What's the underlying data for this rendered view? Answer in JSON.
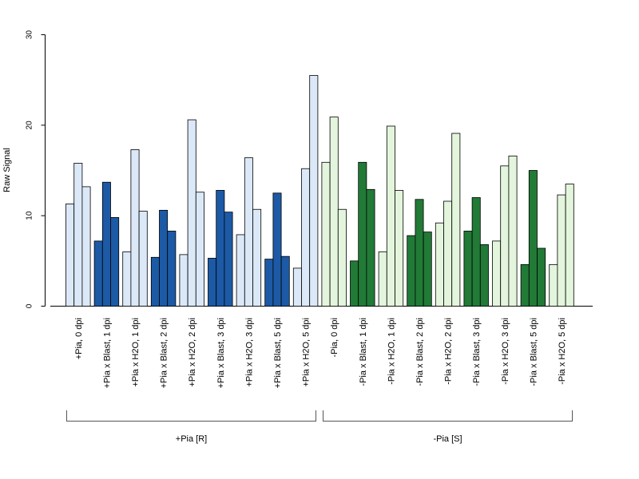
{
  "chart_data": {
    "type": "bar",
    "ylabel": "Raw Signal",
    "ylim": [
      0,
      30
    ],
    "yticks": [
      0,
      10,
      20,
      30
    ],
    "grid": false,
    "categories": [
      "+Pia, 0 dpi",
      "+Pia x Blast, 1 dpi",
      "+Pia x H2O, 1 dpi",
      "+Pia x Blast, 2 dpi",
      "+Pia x H2O, 2 dpi",
      "+Pia x Blast, 3 dpi",
      "+Pia x H2O, 3 dpi",
      "+Pia x Blast, 5 dpi",
      "+Pia x H2O, 5 dpi",
      "-Pia, 0 dpi",
      "-Pia x Blast, 1 dpi",
      "-Pia x H2O, 1 dpi",
      "-Pia x Blast, 2 dpi",
      "-Pia x H2O, 2 dpi",
      "-Pia x Blast, 3 dpi",
      "-Pia x H2O, 3 dpi",
      "-Pia x Blast, 5 dpi",
      "-Pia x H2O, 5 dpi"
    ],
    "replicates": [
      [
        11.3,
        15.8,
        13.2
      ],
      [
        7.2,
        13.7,
        9.8
      ],
      [
        6.0,
        17.3,
        10.5
      ],
      [
        5.4,
        10.6,
        8.3
      ],
      [
        5.7,
        20.6,
        12.6
      ],
      [
        5.3,
        12.8,
        10.4
      ],
      [
        7.9,
        16.4,
        10.7
      ],
      [
        5.2,
        12.5,
        5.5
      ],
      [
        4.2,
        15.2,
        25.5
      ],
      [
        15.9,
        20.9,
        10.7
      ],
      [
        5.0,
        15.9,
        12.9
      ],
      [
        6.0,
        19.9,
        12.8
      ],
      [
        7.8,
        11.8,
        8.2
      ],
      [
        9.2,
        11.6,
        19.1
      ],
      [
        8.3,
        12.0,
        6.8
      ],
      [
        7.2,
        15.5,
        16.6
      ],
      [
        4.6,
        15.0,
        6.4
      ],
      [
        4.6,
        12.3,
        13.5
      ]
    ],
    "groups": [
      {
        "label": "+Pia [R]",
        "start": 0,
        "end": 8
      },
      {
        "label": "-Pia [S]",
        "start": 9,
        "end": 17
      }
    ],
    "colors": {
      "pia_pos_light": "#dbe8f7",
      "pia_pos_dark": "#1c5aa6",
      "pia_neg_light": "#e3f5dc",
      "pia_neg_dark": "#217a36",
      "outline": "#000000"
    }
  }
}
